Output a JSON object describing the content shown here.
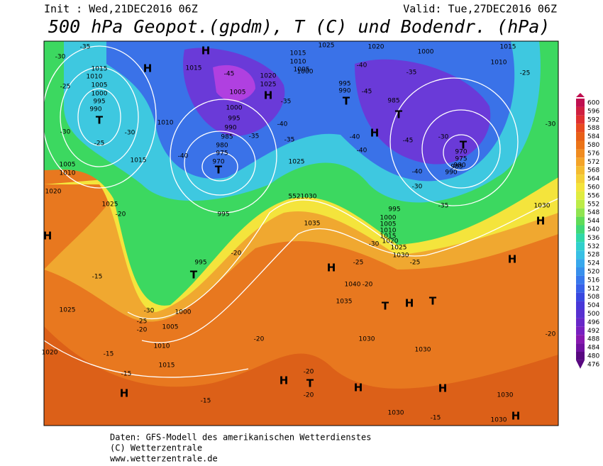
{
  "header": {
    "init": "Init : Wed,21DEC2016 06Z",
    "valid": "Valid: Tue,27DEC2016 06Z",
    "title": "500 hPa Geopot.(gpdm), T (C) und Bodendr. (hPa)"
  },
  "colorbar": {
    "labels": [
      "600",
      "596",
      "592",
      "588",
      "584",
      "580",
      "576",
      "572",
      "568",
      "564",
      "560",
      "556",
      "552",
      "548",
      "544",
      "540",
      "536",
      "532",
      "528",
      "524",
      "520",
      "516",
      "512",
      "508",
      "504",
      "500",
      "496",
      "492",
      "488",
      "484",
      "480",
      "476"
    ]
  },
  "footer": [
    "Daten: GFS-Modell des amerikanischen Wetterdienstes",
    "(C) Wetterzentrale",
    "www.wetterzentrale.de"
  ],
  "map_labels": [
    "-30",
    "1015",
    "1010",
    "1005",
    "1000",
    "995",
    "990",
    "T",
    "-25",
    "-30",
    "-25",
    "-30",
    "1010",
    "1015",
    "1005",
    "1010",
    "1020",
    "1025",
    "-20",
    "H",
    "H",
    "-35",
    "1015",
    "-45",
    "1005",
    "1000",
    "995",
    "990",
    "985",
    "980",
    "975",
    "970",
    "T",
    "-35",
    "-40",
    "1020",
    "1025",
    "H",
    "-35",
    "-35",
    "-40",
    "1025",
    "1030",
    "552",
    "995",
    "995",
    "T",
    "-20",
    "-15",
    "1025",
    "1000",
    "1005",
    "1010",
    "1015",
    "-15",
    "-15",
    "H",
    "-15",
    "1020",
    "H",
    "-30",
    "-25",
    "-20",
    "1015",
    "1010",
    "1005",
    "1000",
    "1025",
    "1020",
    "-40",
    "995",
    "990",
    "-45",
    "T",
    "985",
    "T",
    "H",
    "-45",
    "-40",
    "-40",
    "1000",
    "-35",
    "-30",
    "T",
    "970",
    "975",
    "980",
    "985",
    "990",
    "-40",
    "-30",
    "-35",
    "1015",
    "1010",
    "-25",
    "-30",
    "1030",
    "H",
    "H",
    "-20",
    "995",
    "1000",
    "1005",
    "1010",
    "1015",
    "1020",
    "1025",
    "-30",
    "1030",
    "-25",
    "-25",
    "1035",
    "H",
    "1040",
    "-20",
    "1035",
    "T",
    "H",
    "T",
    "1030",
    "1030",
    "-20",
    "-20",
    "H",
    "T",
    "H",
    "-20",
    "H",
    "1030",
    "1030",
    "-15",
    "1030",
    "H"
  ]
}
